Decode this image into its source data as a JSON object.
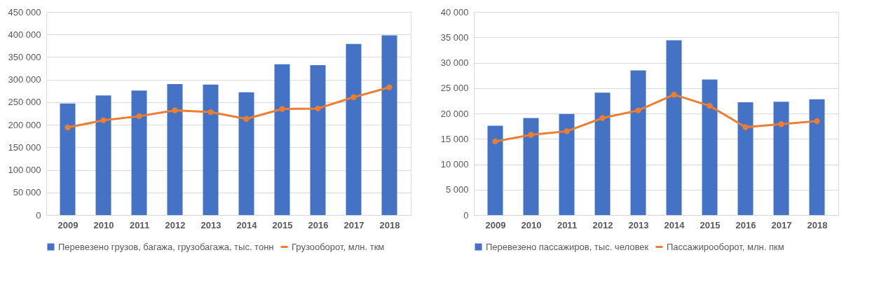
{
  "chart_data": [
    {
      "type": "bar",
      "categories": [
        "2009",
        "2010",
        "2011",
        "2012",
        "2013",
        "2014",
        "2015",
        "2016",
        "2017",
        "2018"
      ],
      "series": [
        {
          "name": "Перевезено грузов, багажа, грузобагажа, тыс. тонн",
          "color": "#4472c4",
          "values": [
            247000,
            265000,
            276000,
            290000,
            289000,
            272000,
            334000,
            332000,
            379000,
            398000
          ]
        },
        {
          "name": "Грузооборот, млн. ткм",
          "color": "#ed7d31",
          "type": "line",
          "values": [
            194000,
            210000,
            219000,
            232000,
            228000,
            213000,
            235000,
            236000,
            261000,
            283000
          ]
        }
      ],
      "ylim": [
        0,
        450000
      ],
      "yticks": [
        0,
        {
          "value": 50000,
          "label": "50 000"
        },
        {
          "value": 100000,
          "label": "100 000"
        },
        {
          "value": 150000,
          "label": "150 000"
        },
        {
          "value": 200000,
          "label": "200 000"
        },
        {
          "value": 250000,
          "label": "250 000"
        },
        {
          "value": 300000,
          "label": "300 000"
        },
        {
          "value": 350000,
          "label": "350 000"
        },
        {
          "value": 400000,
          "label": "400 000"
        },
        {
          "value": 450000,
          "label": "450 000"
        }
      ],
      "grid": "y",
      "legend": "bottom",
      "marker": "circle"
    },
    {
      "type": "bar",
      "categories": [
        "2009",
        "2010",
        "2011",
        "2012",
        "2013",
        "2014",
        "2015",
        "2016",
        "2017",
        "2018"
      ],
      "series": [
        {
          "name": "Перевезено пассажиров, тыс. человек",
          "color": "#4472c4",
          "values": [
            17600,
            19100,
            19900,
            24100,
            28500,
            34400,
            26700,
            22200,
            22300,
            22800
          ]
        },
        {
          "name": "Пассажирооборот, млн. пкм",
          "color": "#ed7d31",
          "type": "line",
          "values": [
            14500,
            15800,
            16500,
            19100,
            20600,
            23700,
            21500,
            17300,
            17900,
            18500
          ]
        }
      ],
      "ylim": [
        0,
        40000
      ],
      "yticks": [
        0,
        {
          "value": 5000,
          "label": "5 000"
        },
        {
          "value": 10000,
          "label": "10 000"
        },
        {
          "value": 15000,
          "label": "15 000"
        },
        {
          "value": 20000,
          "label": "20 000"
        },
        {
          "value": 25000,
          "label": "25 000"
        },
        {
          "value": 30000,
          "label": "30 000"
        },
        {
          "value": 35000,
          "label": "35 000"
        },
        {
          "value": 40000,
          "label": "40 000"
        }
      ],
      "grid": "y",
      "legend": "bottom",
      "marker": "circle"
    }
  ]
}
